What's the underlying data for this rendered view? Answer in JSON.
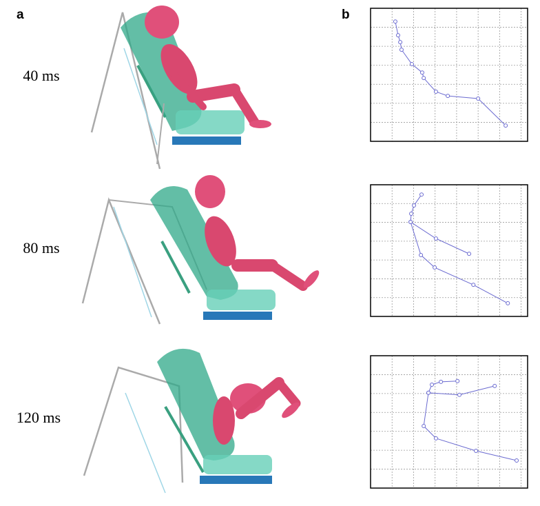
{
  "figure": {
    "panel_a": "a",
    "panel_b": "b",
    "times": [
      "40 ms",
      "80 ms",
      "120 ms"
    ]
  },
  "chart_data": [
    {
      "type": "line",
      "xlim": [
        0,
        7.3
      ],
      "ylim": [
        0,
        7
      ],
      "xticks": [
        1,
        2,
        3,
        4,
        5,
        6,
        7
      ],
      "yticks": [
        1,
        2,
        3,
        4,
        5,
        6
      ],
      "grid": true,
      "x": [
        1.15,
        1.28,
        1.38,
        1.44,
        1.92,
        2.4,
        2.47,
        3.04,
        3.59,
        5.0,
        6.28
      ],
      "series": [
        {
          "color": "#6a6ad0",
          "values": [
            6.3,
            5.58,
            5.22,
            4.82,
            4.06,
            3.62,
            3.33,
            2.61,
            2.39,
            2.25,
            0.83
          ]
        }
      ]
    },
    {
      "type": "line",
      "xlim": [
        0,
        7.3
      ],
      "ylim": [
        0,
        7
      ],
      "xticks": [
        1,
        2,
        3,
        4,
        5,
        6,
        7
      ],
      "yticks": [
        1,
        2,
        3,
        4,
        5,
        6
      ],
      "grid": true,
      "x": [
        2.37,
        2.02,
        1.89,
        1.86,
        3.04,
        4.58,
        null,
        1.86,
        2.34,
        2.98,
        4.78,
        6.38
      ],
      "series": [
        {
          "color": "#6a6ad0",
          "values": [
            6.48,
            5.9,
            5.46,
            5.02,
            4.14,
            3.33,
            null,
            5.02,
            3.26,
            2.6,
            1.68,
            0.7
          ]
        }
      ]
    },
    {
      "type": "line",
      "xlim": [
        0,
        7.3
      ],
      "ylim": [
        0,
        7
      ],
      "xticks": [
        1,
        2,
        3,
        4,
        5,
        6,
        7
      ],
      "yticks": [
        1,
        2,
        3,
        4,
        5,
        6
      ],
      "grid": true,
      "x": [
        4.04,
        3.27,
        2.85,
        2.69,
        4.13,
        5.77,
        null,
        2.69,
        2.47,
        3.04,
        4.9,
        6.79
      ],
      "series": [
        {
          "color": "#6a6ad0",
          "values": [
            5.66,
            5.62,
            5.47,
            5.04,
            4.93,
            5.4,
            null,
            5.04,
            3.28,
            2.63,
            1.97,
            1.46
          ]
        }
      ]
    }
  ]
}
